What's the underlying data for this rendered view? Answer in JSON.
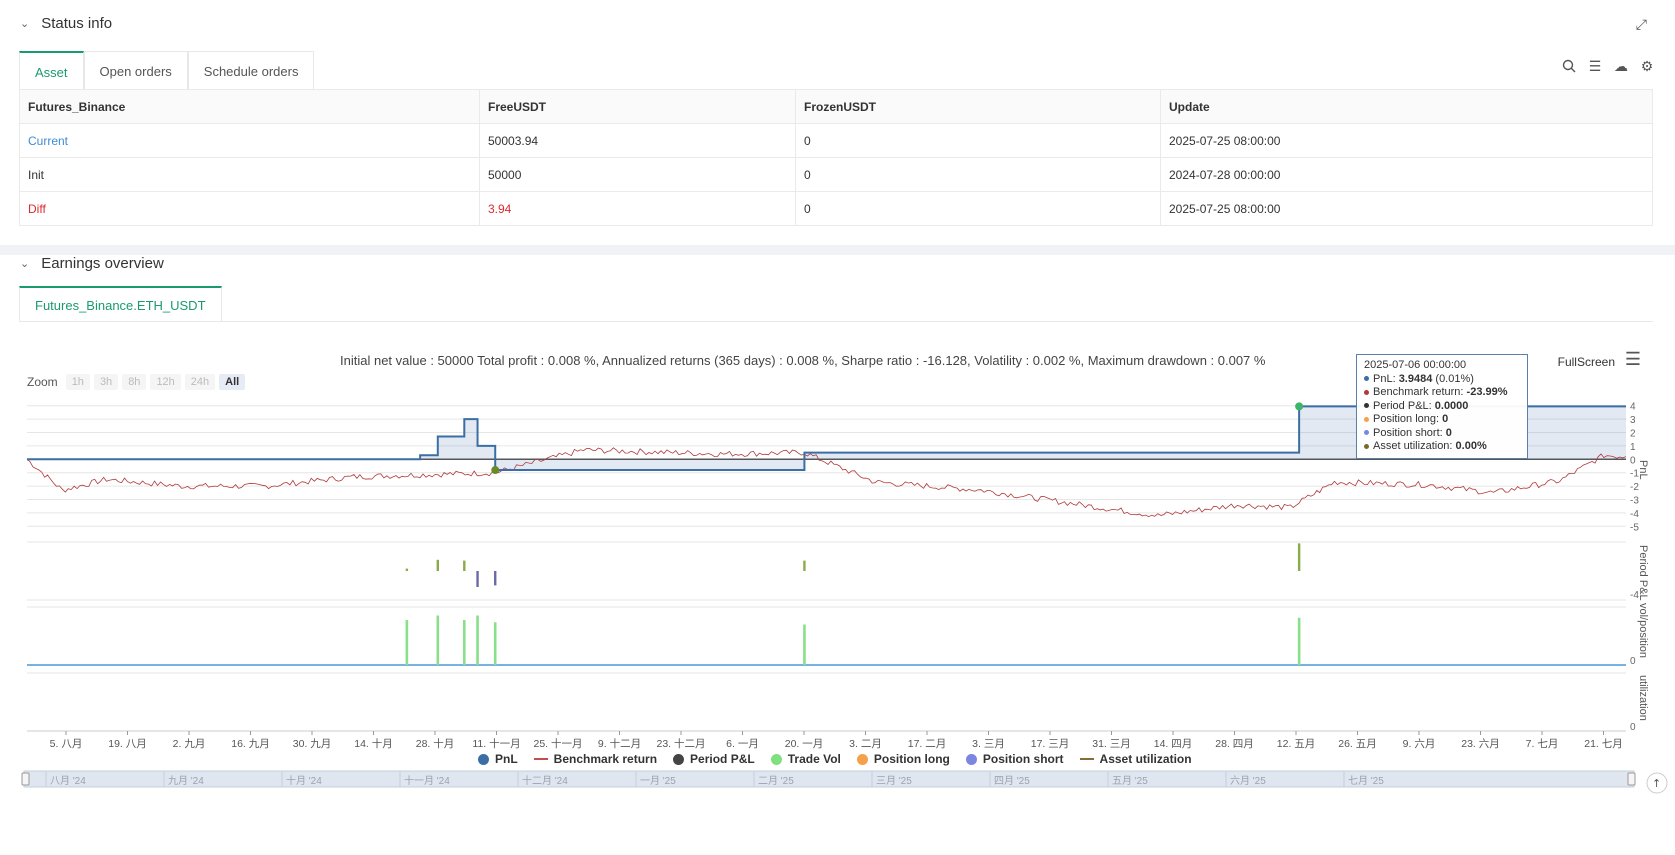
{
  "status": {
    "title": "Status info",
    "tabs": [
      "Asset",
      "Open orders",
      "Schedule orders"
    ],
    "table": {
      "headers": [
        "Futures_Binance",
        "FreeUSDT",
        "FrozenUSDT",
        "Update"
      ],
      "rows": [
        {
          "label": "Current",
          "free": "50003.94",
          "frozen": "0",
          "update": "2025-07-25 08:00:00"
        },
        {
          "label": "Init",
          "free": "50000",
          "frozen": "0",
          "update": "2024-07-28 00:00:00"
        },
        {
          "label": "Diff",
          "free": "3.94",
          "frozen": "0",
          "update": "2025-07-25 08:00:00"
        }
      ]
    }
  },
  "earnings": {
    "title": "Earnings overview",
    "tab": "Futures_Binance.ETH_USDT",
    "summary": "Initial net value : 50000 Total profit : 0.008 %, Annualized returns (365 days) : 0.008 %, Sharpe ratio : -16.128, Volatility : 0.002 %, Maximum drawdown : 0.007 %",
    "fullscreen": "FullScreen",
    "zoom": {
      "label": "Zoom",
      "options": [
        "1h",
        "3h",
        "8h",
        "12h",
        "24h",
        "All"
      ],
      "selected": "All"
    },
    "tooltip": {
      "date": "2025-07-06 00:00:00",
      "rows": [
        {
          "label": "PnL: ",
          "value": "3.9484",
          "extra": " (0.01%)",
          "color": "#3a6ea5"
        },
        {
          "label": "Benchmark return: ",
          "value": "-23.99%",
          "extra": "",
          "color": "#b03a3a"
        },
        {
          "label": "Period P&L: ",
          "value": "0.0000",
          "extra": "",
          "color": "#333333"
        },
        {
          "label": "Position long: ",
          "value": "0",
          "extra": "",
          "color": "#f5a04a"
        },
        {
          "label": "Position short: ",
          "value": "0",
          "extra": "",
          "color": "#7a86e0"
        },
        {
          "label": "Asset utilization: ",
          "value": "0.00%",
          "extra": "",
          "color": "#7a6a2a"
        }
      ]
    },
    "legend": [
      {
        "label": "PnL",
        "color": "#3a6ea5",
        "shape": "dot"
      },
      {
        "label": "Benchmark return",
        "color": "#c0504d",
        "shape": "line"
      },
      {
        "label": "Period P&L",
        "color": "#444444",
        "shape": "dot"
      },
      {
        "label": "Trade Vol",
        "color": "#7ee07e",
        "shape": "dot"
      },
      {
        "label": "Position long",
        "color": "#f5a04a",
        "shape": "dot"
      },
      {
        "label": "Position short",
        "color": "#7a86e0",
        "shape": "dot"
      },
      {
        "label": "Asset utilization",
        "color": "#8a6a3a",
        "shape": "line"
      }
    ]
  },
  "chart_data": {
    "type": "line",
    "axis_titles": {
      "pnl": "PnL",
      "period": "Period P&L",
      "vol": "vol/position",
      "util": "utilization"
    },
    "pnl_ticks": [
      "4",
      "3",
      "2",
      "1",
      "0",
      "-1",
      "-2",
      "-3",
      "-4",
      "-5"
    ],
    "period_ticks": [
      "-4"
    ],
    "vol_ticks": [
      "0"
    ],
    "util_ticks": [
      "0"
    ],
    "x_ticks": [
      "5. 八月",
      "19. 八月",
      "2. 九月",
      "16. 九月",
      "30. 九月",
      "14. 十月",
      "28. 十月",
      "11. 十一月",
      "25. 十一月",
      "9. 十二月",
      "23. 十二月",
      "6. 一月",
      "20. 一月",
      "3. 二月",
      "17. 二月",
      "3. 三月",
      "17. 三月",
      "31. 三月",
      "14. 四月",
      "28. 四月",
      "12. 五月",
      "26. 五月",
      "9. 六月",
      "23. 六月",
      "7. 七月",
      "21. 七月"
    ],
    "navigator_ticks": [
      "八月 '24",
      "九月 '24",
      "十月 '24",
      "十一月 '24",
      "十二月 '24",
      "一月 '25",
      "二月 '25",
      "三月 '25",
      "四月 '25",
      "五月 '25",
      "六月 '25",
      "七月 '25"
    ],
    "pnl_series": {
      "dates": [
        "2024-07-28",
        "2024-10-22",
        "2024-10-25",
        "2024-10-29",
        "2024-11-02",
        "2024-11-04",
        "2024-11-07",
        "2024-11-11",
        "2025-01-19",
        "2025-01-20",
        "2025-05-11",
        "2025-05-12",
        "2025-07-25"
      ],
      "values": [
        0,
        0,
        0.3,
        1.7,
        1.7,
        3.0,
        1.0,
        -0.8,
        -0.8,
        0.5,
        0.5,
        3.95,
        3.95
      ]
    },
    "benchmark_series": {
      "dates": [
        "2024-07-28",
        "2024-08-05",
        "2024-08-15",
        "2024-09-01",
        "2024-09-20",
        "2024-10-10",
        "2024-11-11",
        "2024-12-01",
        "2025-01-01",
        "2025-01-20",
        "2025-02-05",
        "2025-03-01",
        "2025-04-01",
        "2025-04-10",
        "2025-04-28",
        "2025-05-10",
        "2025-05-20",
        "2025-06-10",
        "2025-06-25",
        "2025-07-10",
        "2025-07-20",
        "2025-07-25"
      ],
      "values": [
        0,
        -2.3,
        -1.5,
        -2.0,
        -2.0,
        -1.3,
        -1.0,
        0.7,
        0.4,
        0.5,
        -1.7,
        -2.3,
        -3.8,
        -4.2,
        -3.4,
        -3.6,
        -1.7,
        -1.9,
        -2.5,
        -1.6,
        0.3,
        0.2
      ]
    },
    "period_pnl": [
      {
        "date": "2024-10-22",
        "value": 0.3
      },
      {
        "date": "2024-10-29",
        "value": 1.4
      },
      {
        "date": "2024-11-04",
        "value": 1.3
      },
      {
        "date": "2024-11-07",
        "value": -2.0
      },
      {
        "date": "2024-11-11",
        "value": -1.8
      },
      {
        "date": "2025-01-20",
        "value": 1.3
      },
      {
        "date": "2025-05-12",
        "value": 3.45
      }
    ],
    "trade_vol": [
      {
        "date": "2024-10-22",
        "value": 1.0
      },
      {
        "date": "2024-10-29",
        "value": 1.1
      },
      {
        "date": "2024-11-04",
        "value": 1.0
      },
      {
        "date": "2024-11-07",
        "value": 1.1
      },
      {
        "date": "2024-11-11",
        "value": 0.95
      },
      {
        "date": "2025-01-20",
        "value": 0.9
      },
      {
        "date": "2025-05-12",
        "value": 1.05
      }
    ]
  }
}
